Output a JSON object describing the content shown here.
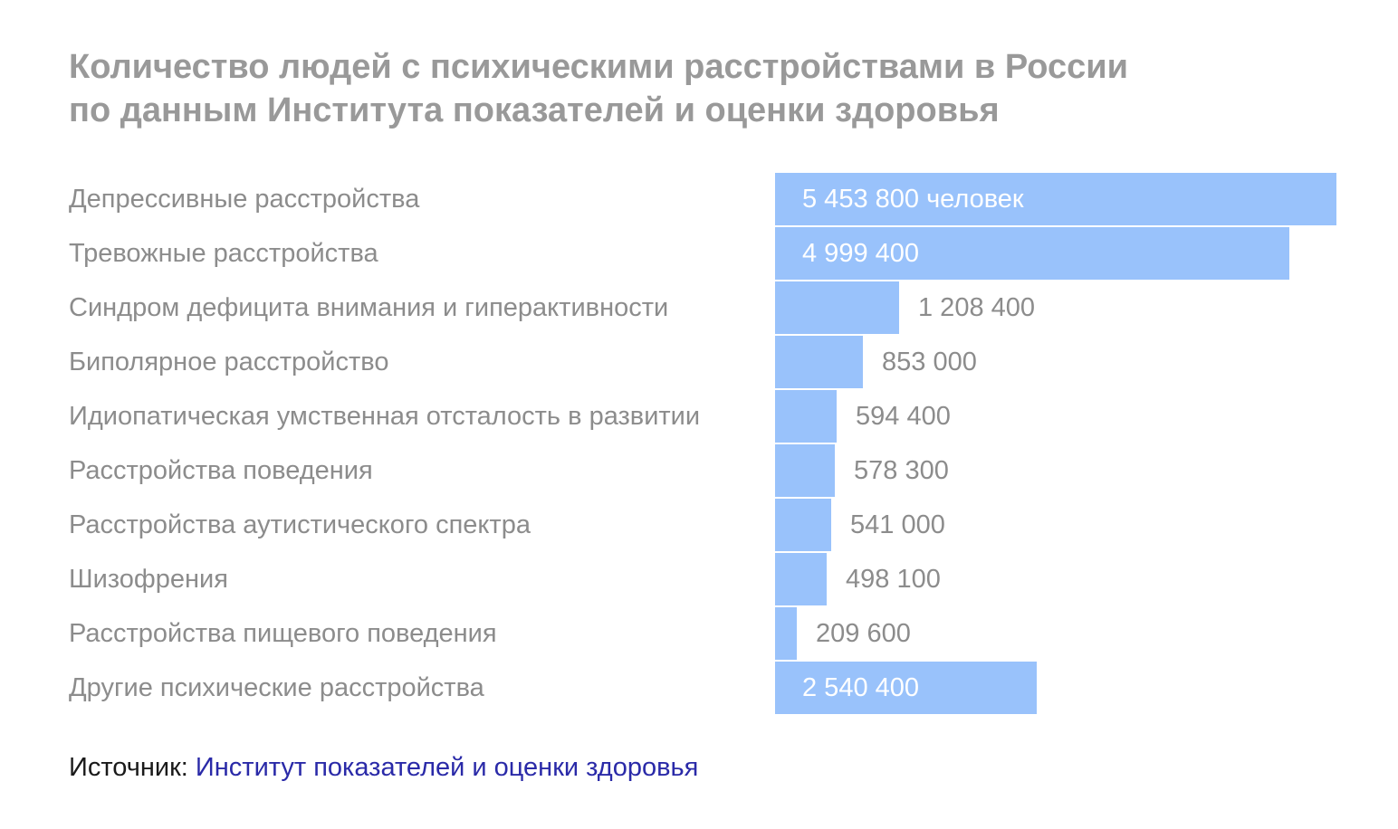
{
  "chart_data": {
    "type": "bar",
    "orientation": "horizontal",
    "title_lines": [
      "Количество людей с психическими расстройствами в России",
      "по данным Института показателей и оценки здоровья"
    ],
    "categories": [
      "Депрессивные расстройства",
      "Тревожные расстройства",
      "Синдром дефицита внимания и гиперактивности",
      "Биполярное расстройство",
      "Идиопатическая умственная отсталость в развитии",
      "Расстройства поведения",
      "Расстройства аутистического спектра",
      "Шизофрения",
      "Расстройства пищевого поведения",
      "Другие психические расстройства"
    ],
    "values": [
      5453800,
      4999400,
      1208400,
      853000,
      594400,
      578300,
      541000,
      498100,
      209600,
      2540400
    ],
    "value_labels": [
      "5 453 800 человек",
      "4 999 400",
      "1 208 400",
      "853 000",
      "594 400",
      "578 300",
      "541 000",
      "498 100",
      "209 600",
      "2 540 400"
    ],
    "bar_color": "#99c2fb",
    "grid": false,
    "legend": false
  },
  "source": {
    "prefix": "Источник: ",
    "link_text": "Институт показателей и оценки здоровья",
    "link_color": "#2a2aa8"
  }
}
